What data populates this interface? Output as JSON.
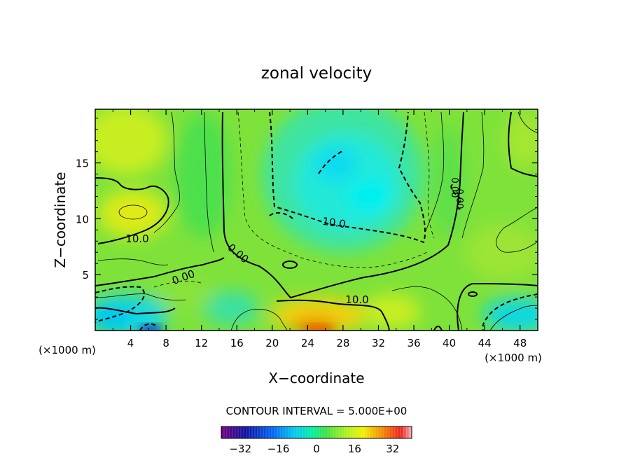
{
  "chart_data": {
    "type": "heatmap",
    "title": "zonal velocity",
    "xlabel": "X−coordinate",
    "ylabel": "Z−coordinate",
    "x_unit_left": "(×1000 m)",
    "x_unit_right": "(×1000 m)",
    "xlim": [
      0,
      50
    ],
    "ylim": [
      0,
      19.8
    ],
    "x_ticks": [
      "4",
      "8",
      "12",
      "16",
      "20",
      "24",
      "28",
      "32",
      "36",
      "40",
      "44",
      "48"
    ],
    "y_ticks": [
      "5",
      "10",
      "15"
    ],
    "contour_interval_text": "CONTOUR INTERVAL = 5.000E+00",
    "contour_labels": [
      "10.0",
      "0.00",
      "0.00",
      "10.0",
      "10.0",
      "0.00",
      "0.00"
    ],
    "colorbar": {
      "range": [
        -40,
        40
      ],
      "tick_labels": [
        "−32",
        "−16",
        "0",
        "16",
        "32"
      ],
      "tick_values": [
        -32,
        -16,
        0,
        16,
        32
      ]
    },
    "colors": {
      "cyan": "#00f0f0",
      "green": "#3ce04a",
      "yellow_green": "#c4f024",
      "yellow": "#f0e600",
      "orange": "#f08000"
    }
  }
}
